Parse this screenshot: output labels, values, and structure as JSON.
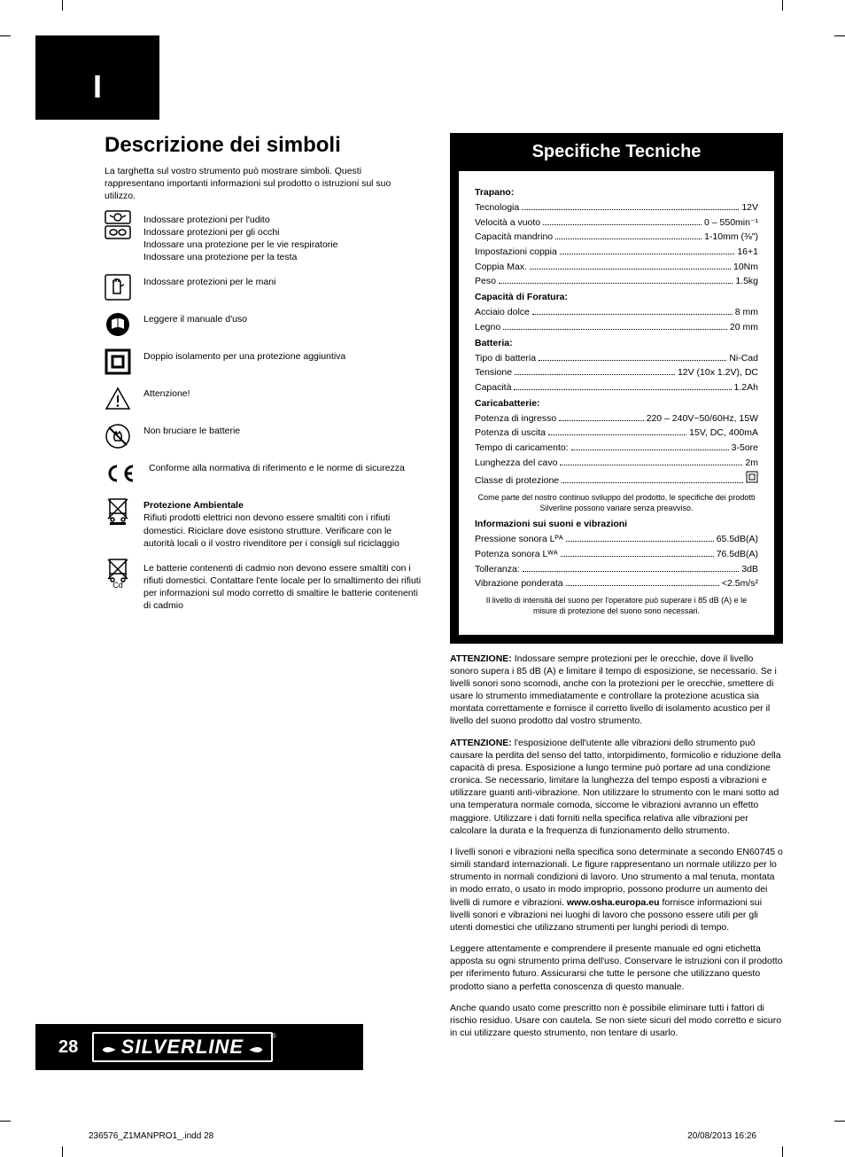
{
  "lang_marker": "I",
  "left": {
    "heading": "Descrizione dei simboli",
    "intro": "La targhetta sul vostro strumento può mostrare simboli. Questi rappresentano importanti informazioni sul prodotto o istruzioni sul suo utilizzo.",
    "rows": [
      {
        "icon": "ppe-head",
        "lines": [
          "Indossare protezioni per l'udito",
          "Indossare protezioni per gli occhi",
          "Indossare una protezione per le vie respiratorie",
          "Indossare una protezione per la testa"
        ]
      },
      {
        "icon": "gloves",
        "lines": [
          "Indossare protezioni per le mani"
        ]
      },
      {
        "icon": "manual",
        "lines": [
          "Leggere il manuale d'uso"
        ]
      },
      {
        "icon": "double-insulation",
        "lines": [
          "Doppio isolamento per una protezione aggiuntiva"
        ]
      },
      {
        "icon": "warning",
        "lines": [
          "Attenzione!"
        ]
      },
      {
        "icon": "no-burn",
        "lines": [
          "Non bruciare le batterie"
        ]
      },
      {
        "icon": "ce",
        "lines": [
          "Conforme alla normativa di riferimento e le norme di sicurezza"
        ]
      },
      {
        "icon": "weee",
        "title": "Protezione Ambientale",
        "lines": [
          "Rifiuti prodotti elettrici non devono essere smaltiti con i rifiuti domestici. Riciclare dove esistono strutture. Verificare con le autorità locali o il vostro rivenditore per i consigli sul riciclaggio"
        ]
      },
      {
        "icon": "cd-batt",
        "lines": [
          "Le batterie contenenti di cadmio non devono essere smaltiti con i rifiuti domestici. Contattare l'ente locale per lo smaltimento dei rifiuti per informazioni sul modo corretto di smaltire le batterie contenenti di cadmio"
        ]
      }
    ]
  },
  "specs": {
    "heading": "Specifiche Tecniche",
    "groups": [
      {
        "title": "Trapano:",
        "rows": [
          {
            "label": "Tecnologia",
            "value": "12V"
          },
          {
            "label": "Velocità a vuoto",
            "value": "0 – 550min⁻¹"
          },
          {
            "label": "Capacità mandrino",
            "value": "1-10mm (⅜\")"
          },
          {
            "label": "Impostazioni coppia",
            "value": "16+1"
          },
          {
            "label": "Coppia Max.",
            "value": "10Nm"
          },
          {
            "label": "Peso",
            "value": "1.5kg"
          }
        ]
      },
      {
        "title": "Capacità di Foratura:",
        "rows": [
          {
            "label": "Acciaio dolce",
            "value": "8 mm"
          },
          {
            "label": "Legno",
            "value": "20 mm"
          }
        ]
      },
      {
        "title": "Batteria:",
        "rows": [
          {
            "label": "Tipo di batteria",
            "value": "Ni-Cad"
          },
          {
            "label": "Tensione",
            "value": "12V (10x 1.2V), DC"
          },
          {
            "label": "Capacità",
            "value": "1.2Ah"
          }
        ]
      },
      {
        "title": "Caricabatterie:",
        "rows": [
          {
            "label": "Potenza di ingresso",
            "value": "220 – 240V~50/60Hz, 15W"
          },
          {
            "label": "Potenza di uscita",
            "value": "15V, DC, 400mA"
          },
          {
            "label": "Tempo di caricamento:",
            "value": "3-5ore"
          },
          {
            "label": "Lunghezza del cavo",
            "value": "2m"
          },
          {
            "label": "Classe di protezione",
            "value": "□"
          }
        ]
      }
    ],
    "note1": "Come parte del nostro continuo sviluppo del prodotto, le specifiche dei prodotti Silverline possono variare senza preavviso.",
    "sound_title": "Informazioni sui suoni e vibrazioni",
    "sound_rows": [
      {
        "label": "Pressione sonora  Lᴾᴬ",
        "value": "65.5dB(A)"
      },
      {
        "label": "Potenza sonora Lᵂᴬ",
        "value": "76.5dB(A)"
      },
      {
        "label": "Tolleranza:",
        "value": "3dB"
      },
      {
        "label": "Vibrazione ponderata",
        "value": "<2.5m/s²"
      }
    ],
    "note2": "Il livello di intensità del suono per l'operatore può superare i 85 dB (A) e le misure di protezione del suono sono necessari."
  },
  "warnings": [
    {
      "bold": "ATTENZIONE: ",
      "text": "Indossare sempre protezioni per le orecchie, dove il livello sonoro supera i 85 dB (A) e limitare il tempo di esposizione, se necessario. Se i livelli sonori sono scomodi, anche con la protezioni per le orecchie, smettere di usare lo strumento immediatamente e controllare la protezione acustica sia montata correttamente e fornisce il corretto livello di isolamento acustico per il livello del suono prodotto dal vostro strumento."
    },
    {
      "bold": "ATTENZIONE: ",
      "text": "l'esposizione dell'utente alle vibrazioni dello strumento può causare la perdita del senso del tatto, intorpidimento, formicolio e riduzione della capacità di presa. Esposizione a lungo termine può portare ad una condizione cronica. Se necessario, limitare la lunghezza del tempo esposti a vibrazioni e utilizzare guanti anti-vibrazione. Non utilizzare lo strumento con le mani sotto ad una temperatura normale comoda, siccome le vibrazioni avranno un effetto maggiore. Utilizzare i dati forniti nella specifica relativa alle vibrazioni per calcolare la durata e la frequenza di funzionamento dello strumento."
    },
    {
      "bold": "",
      "text": "I livelli sonori e vibrazioni nella specifica sono determinate a secondo EN60745 o simili standard internazionali. Le figure rappresentano un normale utilizzo per lo strumento in normali condizioni di lavoro. Uno strumento a mal tenuta, montata in modo errato, o usato in modo improprio, possono produrre un aumento dei livelli di rumore e vibrazioni. www.osha.europa.eu fornisce informazioni sui livelli sonori e vibrazioni nei luoghi di lavoro che possono essere utili per gli utenti domestici che utilizzano strumenti per lunghi periodi di tempo."
    },
    {
      "bold": "",
      "text": "Leggere attentamente e comprendere il presente manuale ed ogni etichetta apposta su ogni strumento prima dell'uso. Conservare le istruzioni con il prodotto per riferimento futuro. Assicurarsi che tutte le persone che utilizzano questo prodotto siano a perfetta conoscenza di questo manuale."
    },
    {
      "bold": "",
      "text": "Anche quando usato come prescritto non è possibile eliminare tutti i fattori di rischio residuo. Usare con cautela. Se non siete sicuri del modo corretto e sicuro in cui utilizzare questo strumento, non tentare di usarlo."
    }
  ],
  "page_number": "28",
  "logo": "SILVERLINE",
  "print_left": "236576_Z1MANPRO1_.indd   28",
  "print_right": "20/08/2013   16:26"
}
